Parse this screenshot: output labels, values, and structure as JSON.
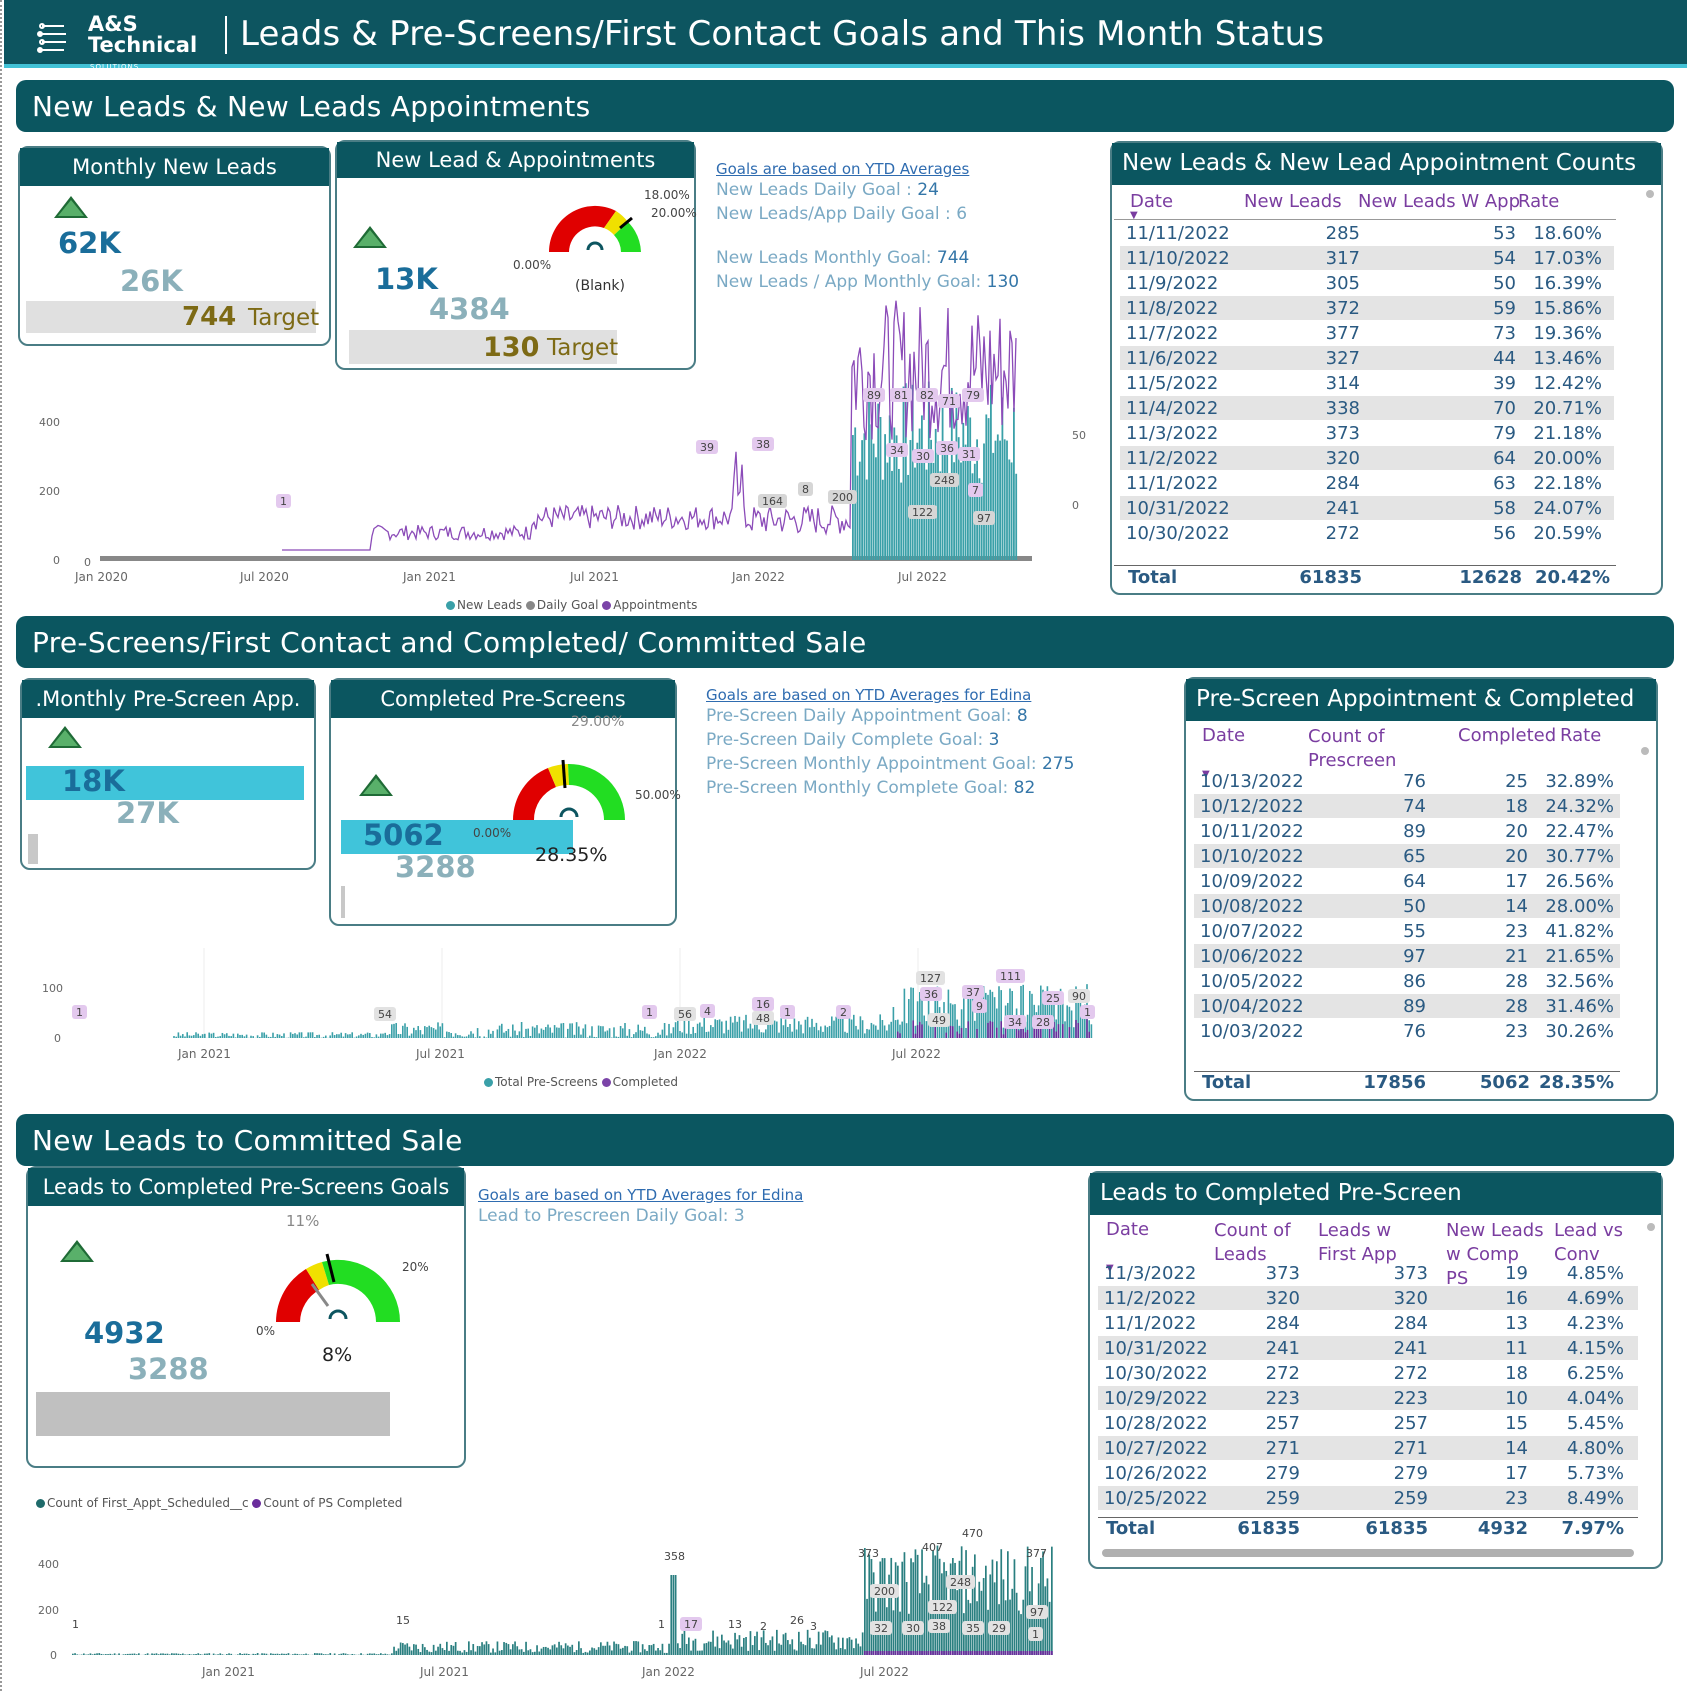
{
  "header": {
    "logo_line1": "A&S",
    "logo_line2": "Technical",
    "logo_sub": "SOLUTIONS",
    "title": "Leads & Pre-Screens/First Contact Goals and This Month Status"
  },
  "section1": {
    "title": "New Leads & New Leads Appointments",
    "kpi1": {
      "title": "Monthly New Leads",
      "value": "62K",
      "prev": "26K",
      "target": "744",
      "target_label": "Target"
    },
    "kpi2": {
      "title": "New Lead & Appointments",
      "value": "13K",
      "prev": "4384",
      "target": "130",
      "target_label": "Target",
      "gauge_min": "0.00%",
      "gauge_a": "18.00%",
      "gauge_b": "20.00%",
      "gauge_value": "(Blank)"
    },
    "goals": {
      "head": "Goals are based on YTD Averages",
      "l1": "New Leads Daily Goal : ",
      "v1": "24",
      "l2": "New Leads/App Daily Goal : ",
      "v2": "6",
      "l3": "New Leads Monthly Goal: ",
      "v3": "744",
      "l4": "New Leads / App Monthly Goal: ",
      "v4": "130"
    },
    "table": {
      "title": "New Leads & New Lead Appointment Counts",
      "cols": [
        "Date",
        "New Leads",
        "New Leads W App",
        "Rate"
      ],
      "rows": [
        [
          "11/11/2022",
          "285",
          "53",
          "18.60%"
        ],
        [
          "11/10/2022",
          "317",
          "54",
          "17.03%"
        ],
        [
          "11/9/2022",
          "305",
          "50",
          "16.39%"
        ],
        [
          "11/8/2022",
          "372",
          "59",
          "15.86%"
        ],
        [
          "11/7/2022",
          "377",
          "73",
          "19.36%"
        ],
        [
          "11/6/2022",
          "327",
          "44",
          "13.46%"
        ],
        [
          "11/5/2022",
          "314",
          "39",
          "12.42%"
        ],
        [
          "11/4/2022",
          "338",
          "70",
          "20.71%"
        ],
        [
          "11/3/2022",
          "373",
          "79",
          "21.18%"
        ],
        [
          "11/2/2022",
          "320",
          "64",
          "20.00%"
        ],
        [
          "11/1/2022",
          "284",
          "63",
          "22.18%"
        ],
        [
          "10/31/2022",
          "241",
          "58",
          "24.07%"
        ],
        [
          "10/30/2022",
          "272",
          "56",
          "20.59%"
        ]
      ],
      "total": [
        "Total",
        "61835",
        "12628",
        "20.42%"
      ]
    },
    "chart_legend": [
      "New Leads",
      "Daily Goal",
      "Appointments"
    ]
  },
  "section2": {
    "title": "Pre-Screens/First Contact and Completed/ Committed Sale",
    "kpi1": {
      "title": ".Monthly Pre-Screen App.",
      "value": "18K",
      "prev": "27K"
    },
    "kpi2": {
      "title": "Completed Pre-Screens",
      "value": "5062",
      "prev": "3288",
      "gauge_min": "0.00%",
      "gauge_a": "29.00%",
      "gauge_b": "50.00%",
      "gauge_value": "28.35%"
    },
    "goals": {
      "head": "Goals are based on YTD Averages for Edina",
      "l1": "Pre-Screen Daily Appointment Goal: ",
      "v1": "8",
      "l2": "Pre-Screen Daily Complete Goal: ",
      "v2": "3",
      "l3": "Pre-Screen Monthly Appointment Goal: ",
      "v3": "275",
      "l4": "Pre-Screen Monthly Complete Goal: ",
      "v4": "82"
    },
    "table": {
      "title": "Pre-Screen Appointment & Completed",
      "cols": [
        "Date",
        "Count of Prescreen",
        "Completed",
        "Rate"
      ],
      "rows": [
        [
          "10/13/2022",
          "76",
          "25",
          "32.89%"
        ],
        [
          "10/12/2022",
          "74",
          "18",
          "24.32%"
        ],
        [
          "10/11/2022",
          "89",
          "20",
          "22.47%"
        ],
        [
          "10/10/2022",
          "65",
          "20",
          "30.77%"
        ],
        [
          "10/09/2022",
          "64",
          "17",
          "26.56%"
        ],
        [
          "10/08/2022",
          "50",
          "14",
          "28.00%"
        ],
        [
          "10/07/2022",
          "55",
          "23",
          "41.82%"
        ],
        [
          "10/06/2022",
          "97",
          "21",
          "21.65%"
        ],
        [
          "10/05/2022",
          "86",
          "28",
          "32.56%"
        ],
        [
          "10/04/2022",
          "89",
          "28",
          "31.46%"
        ],
        [
          "10/03/2022",
          "76",
          "23",
          "30.26%"
        ]
      ],
      "total": [
        "Total",
        "17856",
        "5062",
        "28.35%"
      ]
    },
    "chart_legend": [
      "Total Pre-Screens",
      "Completed"
    ]
  },
  "section3": {
    "title": "New Leads to Committed Sale",
    "kpi": {
      "title": "Leads to Completed Pre-Screens Goals",
      "value": "4932",
      "prev": "3288",
      "gauge_min": "0%",
      "gauge_a": "11%",
      "gauge_b": "20%",
      "gauge_value": "8%"
    },
    "goals": {
      "head": "Goals are based on YTD Averages for Edina",
      "l1": "Lead to Prescreen Daily Goal: ",
      "v1": "3"
    },
    "table": {
      "title": "Leads to Completed Pre-Screen",
      "cols": [
        "Date",
        "Count of Leads",
        "Leads w First App",
        "New Leads w Comp PS",
        "Lead vs Conv"
      ],
      "rows": [
        [
          "11/3/2022",
          "373",
          "373",
          "19",
          "4.85%"
        ],
        [
          "11/2/2022",
          "320",
          "320",
          "16",
          "4.69%"
        ],
        [
          "11/1/2022",
          "284",
          "284",
          "13",
          "4.23%"
        ],
        [
          "10/31/2022",
          "241",
          "241",
          "11",
          "4.15%"
        ],
        [
          "10/30/2022",
          "272",
          "272",
          "18",
          "6.25%"
        ],
        [
          "10/29/2022",
          "223",
          "223",
          "10",
          "4.04%"
        ],
        [
          "10/28/2022",
          "257",
          "257",
          "15",
          "5.45%"
        ],
        [
          "10/27/2022",
          "271",
          "271",
          "14",
          "4.80%"
        ],
        [
          "10/26/2022",
          "279",
          "279",
          "17",
          "5.73%"
        ],
        [
          "10/25/2022",
          "259",
          "259",
          "23",
          "8.49%"
        ]
      ],
      "total": [
        "Total",
        "61835",
        "61835",
        "4932",
        "7.97%"
      ]
    },
    "chart_legend": [
      "Count of First_Appt_Scheduled__c",
      "Count of PS Completed"
    ]
  },
  "colors": {
    "header_bg": "#0d5560",
    "accent": "#42c2d6",
    "teal_bars": "#3aa0a8",
    "purple": "#7b44a8",
    "gauge_red": "#e00000",
    "gauge_yellow": "#f0e000",
    "gauge_green": "#22dd22"
  },
  "chart_data": [
    {
      "type": "line",
      "title": "",
      "series": [
        {
          "name": "New Leads"
        },
        {
          "name": "Daily Goal"
        },
        {
          "name": "Appointments"
        }
      ],
      "x_ticks": [
        "Jan 2020",
        "Jul 2020",
        "Jan 2021",
        "Jul 2021",
        "Jan 2022",
        "Jul 2022"
      ],
      "y_ticks": [
        "0",
        "200",
        "400"
      ],
      "y2_ticks": [
        "0",
        "50"
      ],
      "ylim": [
        0,
        450
      ],
      "annotations": [
        "1",
        "39",
        "38",
        "164",
        "8",
        "200",
        "89",
        "81",
        "82",
        "71",
        "79",
        "34",
        "30",
        "36",
        "31",
        "248",
        "122",
        "7",
        "97"
      ]
    },
    {
      "type": "bar",
      "title": "",
      "series": [
        {
          "name": "Total Pre-Screens"
        },
        {
          "name": "Completed"
        }
      ],
      "x_ticks": [
        "Jan 2021",
        "Jul 2021",
        "Jan 2022",
        "Jul 2022"
      ],
      "y_ticks": [
        "0",
        "100"
      ],
      "annotations": [
        "1",
        "54",
        "1",
        "56",
        "4",
        "16",
        "48",
        "1",
        "2",
        "127",
        "36",
        "37",
        "9",
        "111",
        "49",
        "34",
        "28",
        "25",
        "90",
        "1"
      ]
    },
    {
      "type": "bar",
      "title": "",
      "series": [
        {
          "name": "Count of First_Appt_Scheduled__c"
        },
        {
          "name": "Count of PS Completed"
        }
      ],
      "x_ticks": [
        "Jan 2021",
        "Jul 2021",
        "Jan 2022",
        "Jul 2022"
      ],
      "y_ticks": [
        "0",
        "200",
        "400"
      ],
      "annotations": [
        "1",
        "15",
        "358",
        "1",
        "17",
        "13",
        "2",
        "26",
        "3",
        "373",
        "407",
        "470",
        "377",
        "200",
        "248",
        "122",
        "32",
        "30",
        "38",
        "35",
        "29",
        "97",
        "1"
      ]
    }
  ]
}
